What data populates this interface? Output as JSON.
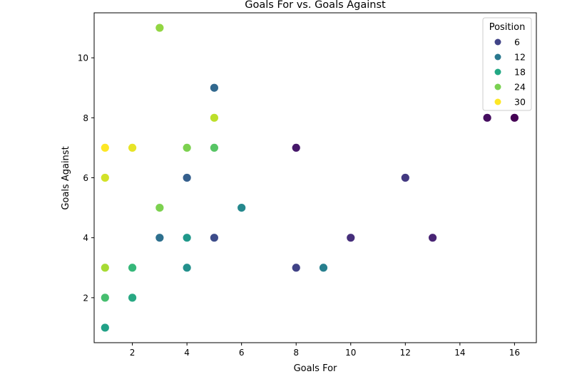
{
  "chart_data": {
    "type": "scatter",
    "title": "Goals For vs. Goals Against",
    "xlabel": "Goals For",
    "ylabel": "Goals Against",
    "xlim": [
      0.6,
      16.8
    ],
    "ylim": [
      0.5,
      11.5
    ],
    "x_ticks": [
      2,
      4,
      6,
      8,
      10,
      12,
      14,
      16
    ],
    "y_ticks": [
      2,
      4,
      6,
      8,
      10
    ],
    "grid": false,
    "colormap": "viridis",
    "color_range": [
      1,
      31
    ],
    "legend": {
      "title": "Position",
      "placement": "top-right",
      "entries": [
        {
          "label": "6",
          "color": "#414487"
        },
        {
          "label": "12",
          "color": "#2a788e"
        },
        {
          "label": "18",
          "color": "#22a884"
        },
        {
          "label": "24",
          "color": "#7ad151"
        },
        {
          "label": "30",
          "color": "#fde725"
        }
      ]
    },
    "points": [
      {
        "x": 16,
        "y": 8,
        "position": 1
      },
      {
        "x": 15,
        "y": 8,
        "position": 2
      },
      {
        "x": 8,
        "y": 7,
        "position": 3
      },
      {
        "x": 13,
        "y": 4,
        "position": 4
      },
      {
        "x": 10,
        "y": 4,
        "position": 5
      },
      {
        "x": 12,
        "y": 6,
        "position": 6
      },
      {
        "x": 8,
        "y": 3,
        "position": 7
      },
      {
        "x": 5,
        "y": 4,
        "position": 8
      },
      {
        "x": 4,
        "y": 6,
        "position": 10
      },
      {
        "x": 5,
        "y": 9,
        "position": 11
      },
      {
        "x": 3,
        "y": 4,
        "position": 12
      },
      {
        "x": 9,
        "y": 3,
        "position": 14
      },
      {
        "x": 6,
        "y": 5,
        "position": 15
      },
      {
        "x": 4,
        "y": 3,
        "position": 16
      },
      {
        "x": 4,
        "y": 4,
        "position": 17
      },
      {
        "x": 1,
        "y": 1,
        "position": 18
      },
      {
        "x": 2,
        "y": 2,
        "position": 19
      },
      {
        "x": 2,
        "y": 3,
        "position": 21
      },
      {
        "x": 1,
        "y": 2,
        "position": 22
      },
      {
        "x": 5,
        "y": 7,
        "position": 23
      },
      {
        "x": 4,
        "y": 7,
        "position": 25
      },
      {
        "x": 3,
        "y": 5,
        "position": 25
      },
      {
        "x": 3,
        "y": 11,
        "position": 26
      },
      {
        "x": 1,
        "y": 3,
        "position": 27
      },
      {
        "x": 5,
        "y": 8,
        "position": 28
      },
      {
        "x": 1,
        "y": 6,
        "position": 29
      },
      {
        "x": 2,
        "y": 7,
        "position": 30
      },
      {
        "x": 1,
        "y": 7,
        "position": 31
      }
    ]
  }
}
